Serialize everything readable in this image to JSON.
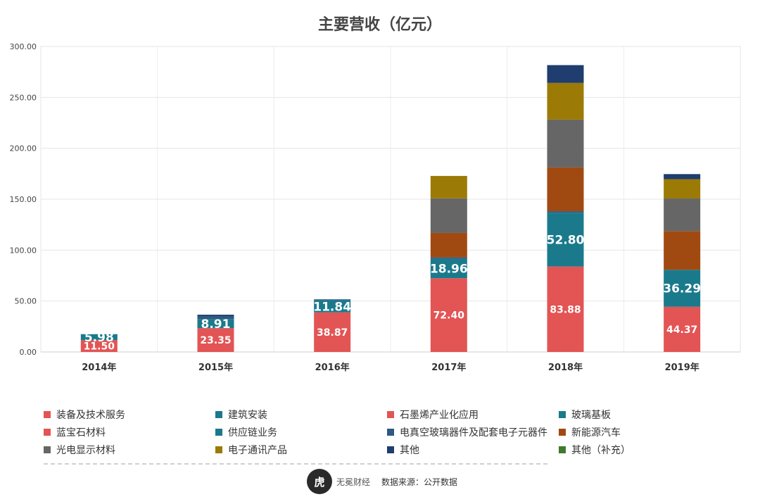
{
  "chart_data": {
    "type": "bar",
    "stacked": true,
    "title": "主要营收（亿元）",
    "categories": [
      "2014年",
      "2015年",
      "2016年",
      "2017年",
      "2018年",
      "2019年"
    ],
    "ylim": [
      0,
      300
    ],
    "yticks": [
      "0.00",
      "50.00",
      "100.00",
      "150.00",
      "200.00",
      "250.00",
      "300.00"
    ],
    "grid": true,
    "legend_position": "bottom",
    "series": [
      {
        "name": "装备及技术服务",
        "color": "#e35454",
        "values": [
          0,
          0,
          0,
          0,
          0,
          0
        ]
      },
      {
        "name": "建筑安装",
        "color": "#1a7a8c",
        "values": [
          0,
          0,
          0,
          0,
          0,
          0
        ]
      },
      {
        "name": "石墨烯产业化应用",
        "color": "#e35454",
        "values": [
          0,
          0,
          0,
          0,
          0,
          0
        ]
      },
      {
        "name": "玻璃基板",
        "color": "#1a7a8c",
        "values": [
          0,
          0,
          0,
          0,
          0,
          0
        ]
      },
      {
        "name": "蓝宝石材料",
        "color": "#e35454",
        "values": [
          11.5,
          23.35,
          38.87,
          72.4,
          83.88,
          44.37
        ]
      },
      {
        "name": "供应链业务",
        "color": "#1a7a8c",
        "values": [
          5.98,
          8.91,
          11.84,
          18.96,
          52.8,
          36.29
        ]
      },
      {
        "name": "电真空玻璃器件及配套电子元器件",
        "color": "#2d5a82",
        "values": [
          0,
          3.0,
          1.0,
          1.5,
          1.5,
          0
        ]
      },
      {
        "name": "新能源汽车",
        "color": "#a04a12",
        "values": [
          0,
          0,
          0,
          24.0,
          43.0,
          38.0
        ]
      },
      {
        "name": "光电显示材料",
        "color": "#666666",
        "values": [
          0,
          0,
          0,
          34.0,
          47.0,
          32.0
        ]
      },
      {
        "name": "电子通讯产品",
        "color": "#9c7a06",
        "values": [
          0,
          0,
          0,
          22.0,
          36.0,
          19.0
        ]
      },
      {
        "name": "其他",
        "color": "#1f3d6e",
        "values": [
          0,
          1.3,
          0,
          0,
          17.5,
          5.0
        ]
      },
      {
        "name": "其他（补充）",
        "color": "#3e7a2e",
        "values": [
          0,
          0,
          0,
          0,
          0,
          0
        ]
      }
    ],
    "data_labels": [
      {
        "series": "蓝宝石材料",
        "labels": [
          "11.50",
          "23.35",
          "38.87",
          "72.40",
          "83.88",
          "44.37"
        ]
      },
      {
        "series": "供应链业务",
        "labels": [
          "5.98",
          "8.91",
          "11.84",
          "18.96",
          "52.80",
          "36.29"
        ]
      }
    ]
  },
  "footer": {
    "logo_glyph": "虎",
    "logo_text": "无冕财经",
    "source": "数据来源：公开数据"
  }
}
